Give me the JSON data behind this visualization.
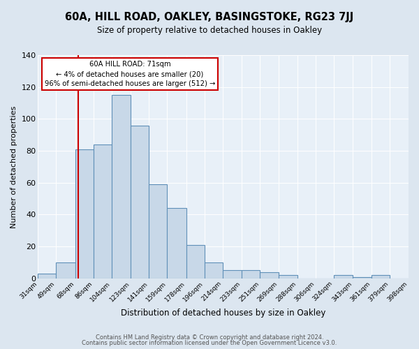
{
  "title": "60A, HILL ROAD, OAKLEY, BASINGSTOKE, RG23 7JJ",
  "subtitle": "Size of property relative to detached houses in Oakley",
  "xlabel": "Distribution of detached houses by size in Oakley",
  "ylabel": "Number of detached properties",
  "bar_color": "#c8d8e8",
  "bar_edge_color": "#6090b8",
  "bg_color": "#dce6f0",
  "plot_bg_color": "#e8f0f8",
  "annotation_text": "60A HILL ROAD: 71sqm\n← 4% of detached houses are smaller (20)\n96% of semi-detached houses are larger (512) →",
  "vline_x": 71,
  "vline_color": "#cc0000",
  "bins": [
    31,
    49,
    68,
    86,
    104,
    123,
    141,
    159,
    178,
    196,
    214,
    233,
    251,
    269,
    288,
    306,
    324,
    343,
    361,
    379,
    398
  ],
  "bin_labels": [
    "31sqm",
    "49sqm",
    "68sqm",
    "86sqm",
    "104sqm",
    "123sqm",
    "141sqm",
    "159sqm",
    "178sqm",
    "196sqm",
    "214sqm",
    "233sqm",
    "251sqm",
    "269sqm",
    "288sqm",
    "306sqm",
    "324sqm",
    "343sqm",
    "361sqm",
    "379sqm",
    "398sqm"
  ],
  "bar_heights": [
    3,
    10,
    81,
    84,
    115,
    96,
    59,
    44,
    21,
    10,
    5,
    5,
    4,
    2,
    0,
    0,
    2,
    1,
    2,
    0
  ],
  "ylim": [
    0,
    140
  ],
  "yticks": [
    0,
    20,
    40,
    60,
    80,
    100,
    120,
    140
  ],
  "footer1": "Contains HM Land Registry data © Crown copyright and database right 2024.",
  "footer2": "Contains public sector information licensed under the Open Government Licence v3.0."
}
